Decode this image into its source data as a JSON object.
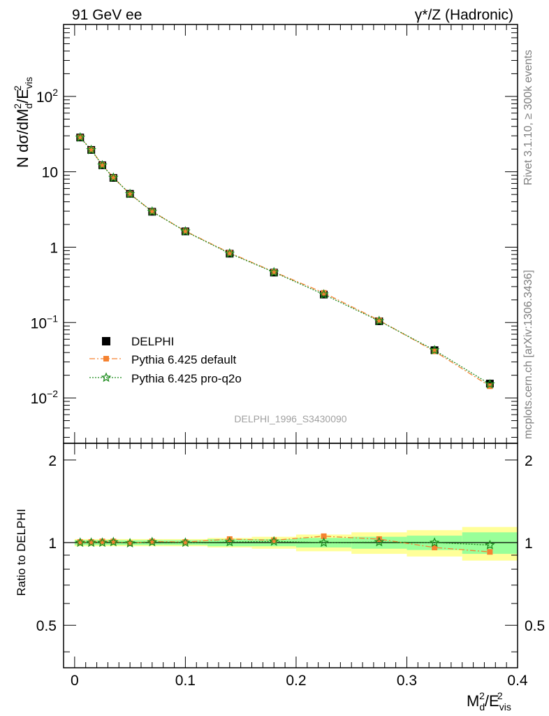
{
  "header": {
    "left": "91 GeV ee",
    "right": "γ*/Z (Hadronic)"
  },
  "side_text": {
    "rivet": "Rivet 3.1.10, ≥ 300k events",
    "mcplots": "mcplots.cern.ch [arXiv:1306.3436]"
  },
  "watermark": "DELPHI_1996_S3430090",
  "legend": {
    "items": [
      "DELPHI",
      "Pythia 6.425 default",
      "Pythia 6.425 pro-q2o"
    ]
  },
  "colors": {
    "data": "#000000",
    "default": "#f58231",
    "proq2o": "#1e8c1e",
    "band_inner": "#99ff99",
    "band_outer": "#ffff99",
    "side_text": "#808080",
    "watermark": "#a0a0a0"
  },
  "chart_data": [
    {
      "type": "scatter",
      "panel": "main",
      "ylabel": "N dσ/dM_d^2/E_vis^2",
      "yscale": "log",
      "xlim": [
        -0.01,
        0.4
      ],
      "ylim": [
        0.0025,
        900
      ],
      "y_tick_labels": [
        "10^-2",
        "10^-1",
        "1",
        "10",
        "10^2"
      ],
      "x": [
        0.005,
        0.015,
        0.025,
        0.035,
        0.05,
        0.07,
        0.1,
        0.14,
        0.18,
        0.225,
        0.275,
        0.325,
        0.375
      ],
      "series": [
        {
          "name": "DELPHI",
          "values": [
            28.5,
            19.5,
            12.2,
            8.3,
            5.1,
            2.95,
            1.62,
            0.82,
            0.46,
            0.235,
            0.104,
            0.043,
            0.0155
          ]
        },
        {
          "name": "Pythia 6.425 default",
          "values": [
            28.6,
            19.6,
            12.3,
            8.4,
            5.07,
            2.98,
            1.63,
            0.84,
            0.47,
            0.248,
            0.107,
            0.0415,
            0.0143
          ]
        },
        {
          "name": "Pythia 6.425 pro-q2o",
          "values": [
            28.5,
            19.5,
            12.2,
            8.35,
            5.08,
            2.97,
            1.62,
            0.825,
            0.465,
            0.236,
            0.105,
            0.043,
            0.0152
          ]
        }
      ]
    },
    {
      "type": "scatter",
      "panel": "ratio",
      "xlabel": "M_d^2/E_vis^2",
      "ylabel": "Ratio to DELPHI",
      "xlim": [
        -0.01,
        0.4
      ],
      "ylim": [
        0.35,
        2.3
      ],
      "x_tick_labels": [
        "0",
        "0.1",
        "0.2",
        "0.3",
        "0.4"
      ],
      "y_tick_labels": [
        "0.5",
        "1",
        "2"
      ],
      "x_bins": [
        [
          0,
          0.01
        ],
        [
          0.01,
          0.02
        ],
        [
          0.02,
          0.03
        ],
        [
          0.03,
          0.04
        ],
        [
          0.04,
          0.06
        ],
        [
          0.06,
          0.08
        ],
        [
          0.08,
          0.12
        ],
        [
          0.12,
          0.16
        ],
        [
          0.16,
          0.2
        ],
        [
          0.2,
          0.25
        ],
        [
          0.25,
          0.3
        ],
        [
          0.3,
          0.35
        ],
        [
          0.35,
          0.4
        ]
      ],
      "band_inner": [
        0.02,
        0.02,
        0.02,
        0.02,
        0.02,
        0.02,
        0.02,
        0.03,
        0.03,
        0.04,
        0.05,
        0.06,
        0.09
      ],
      "band_outer": [
        0.03,
        0.03,
        0.03,
        0.03,
        0.03,
        0.03,
        0.03,
        0.04,
        0.05,
        0.07,
        0.09,
        0.11,
        0.14
      ],
      "x": [
        0.005,
        0.015,
        0.025,
        0.035,
        0.05,
        0.07,
        0.1,
        0.14,
        0.18,
        0.225,
        0.275,
        0.325,
        0.375
      ],
      "series": [
        {
          "name": "Pythia 6.425 default",
          "values": [
            1.005,
            1.005,
            1.01,
            1.01,
            0.995,
            1.01,
            1.005,
            1.03,
            1.02,
            1.055,
            1.03,
            0.96,
            0.925
          ]
        },
        {
          "name": "Pythia 6.425 pro-q2o",
          "values": [
            1.0,
            1.0,
            1.0,
            1.005,
            0.995,
            1.005,
            1.0,
            1.005,
            1.01,
            1.0,
            1.005,
            1.0,
            0.98
          ]
        }
      ]
    }
  ]
}
